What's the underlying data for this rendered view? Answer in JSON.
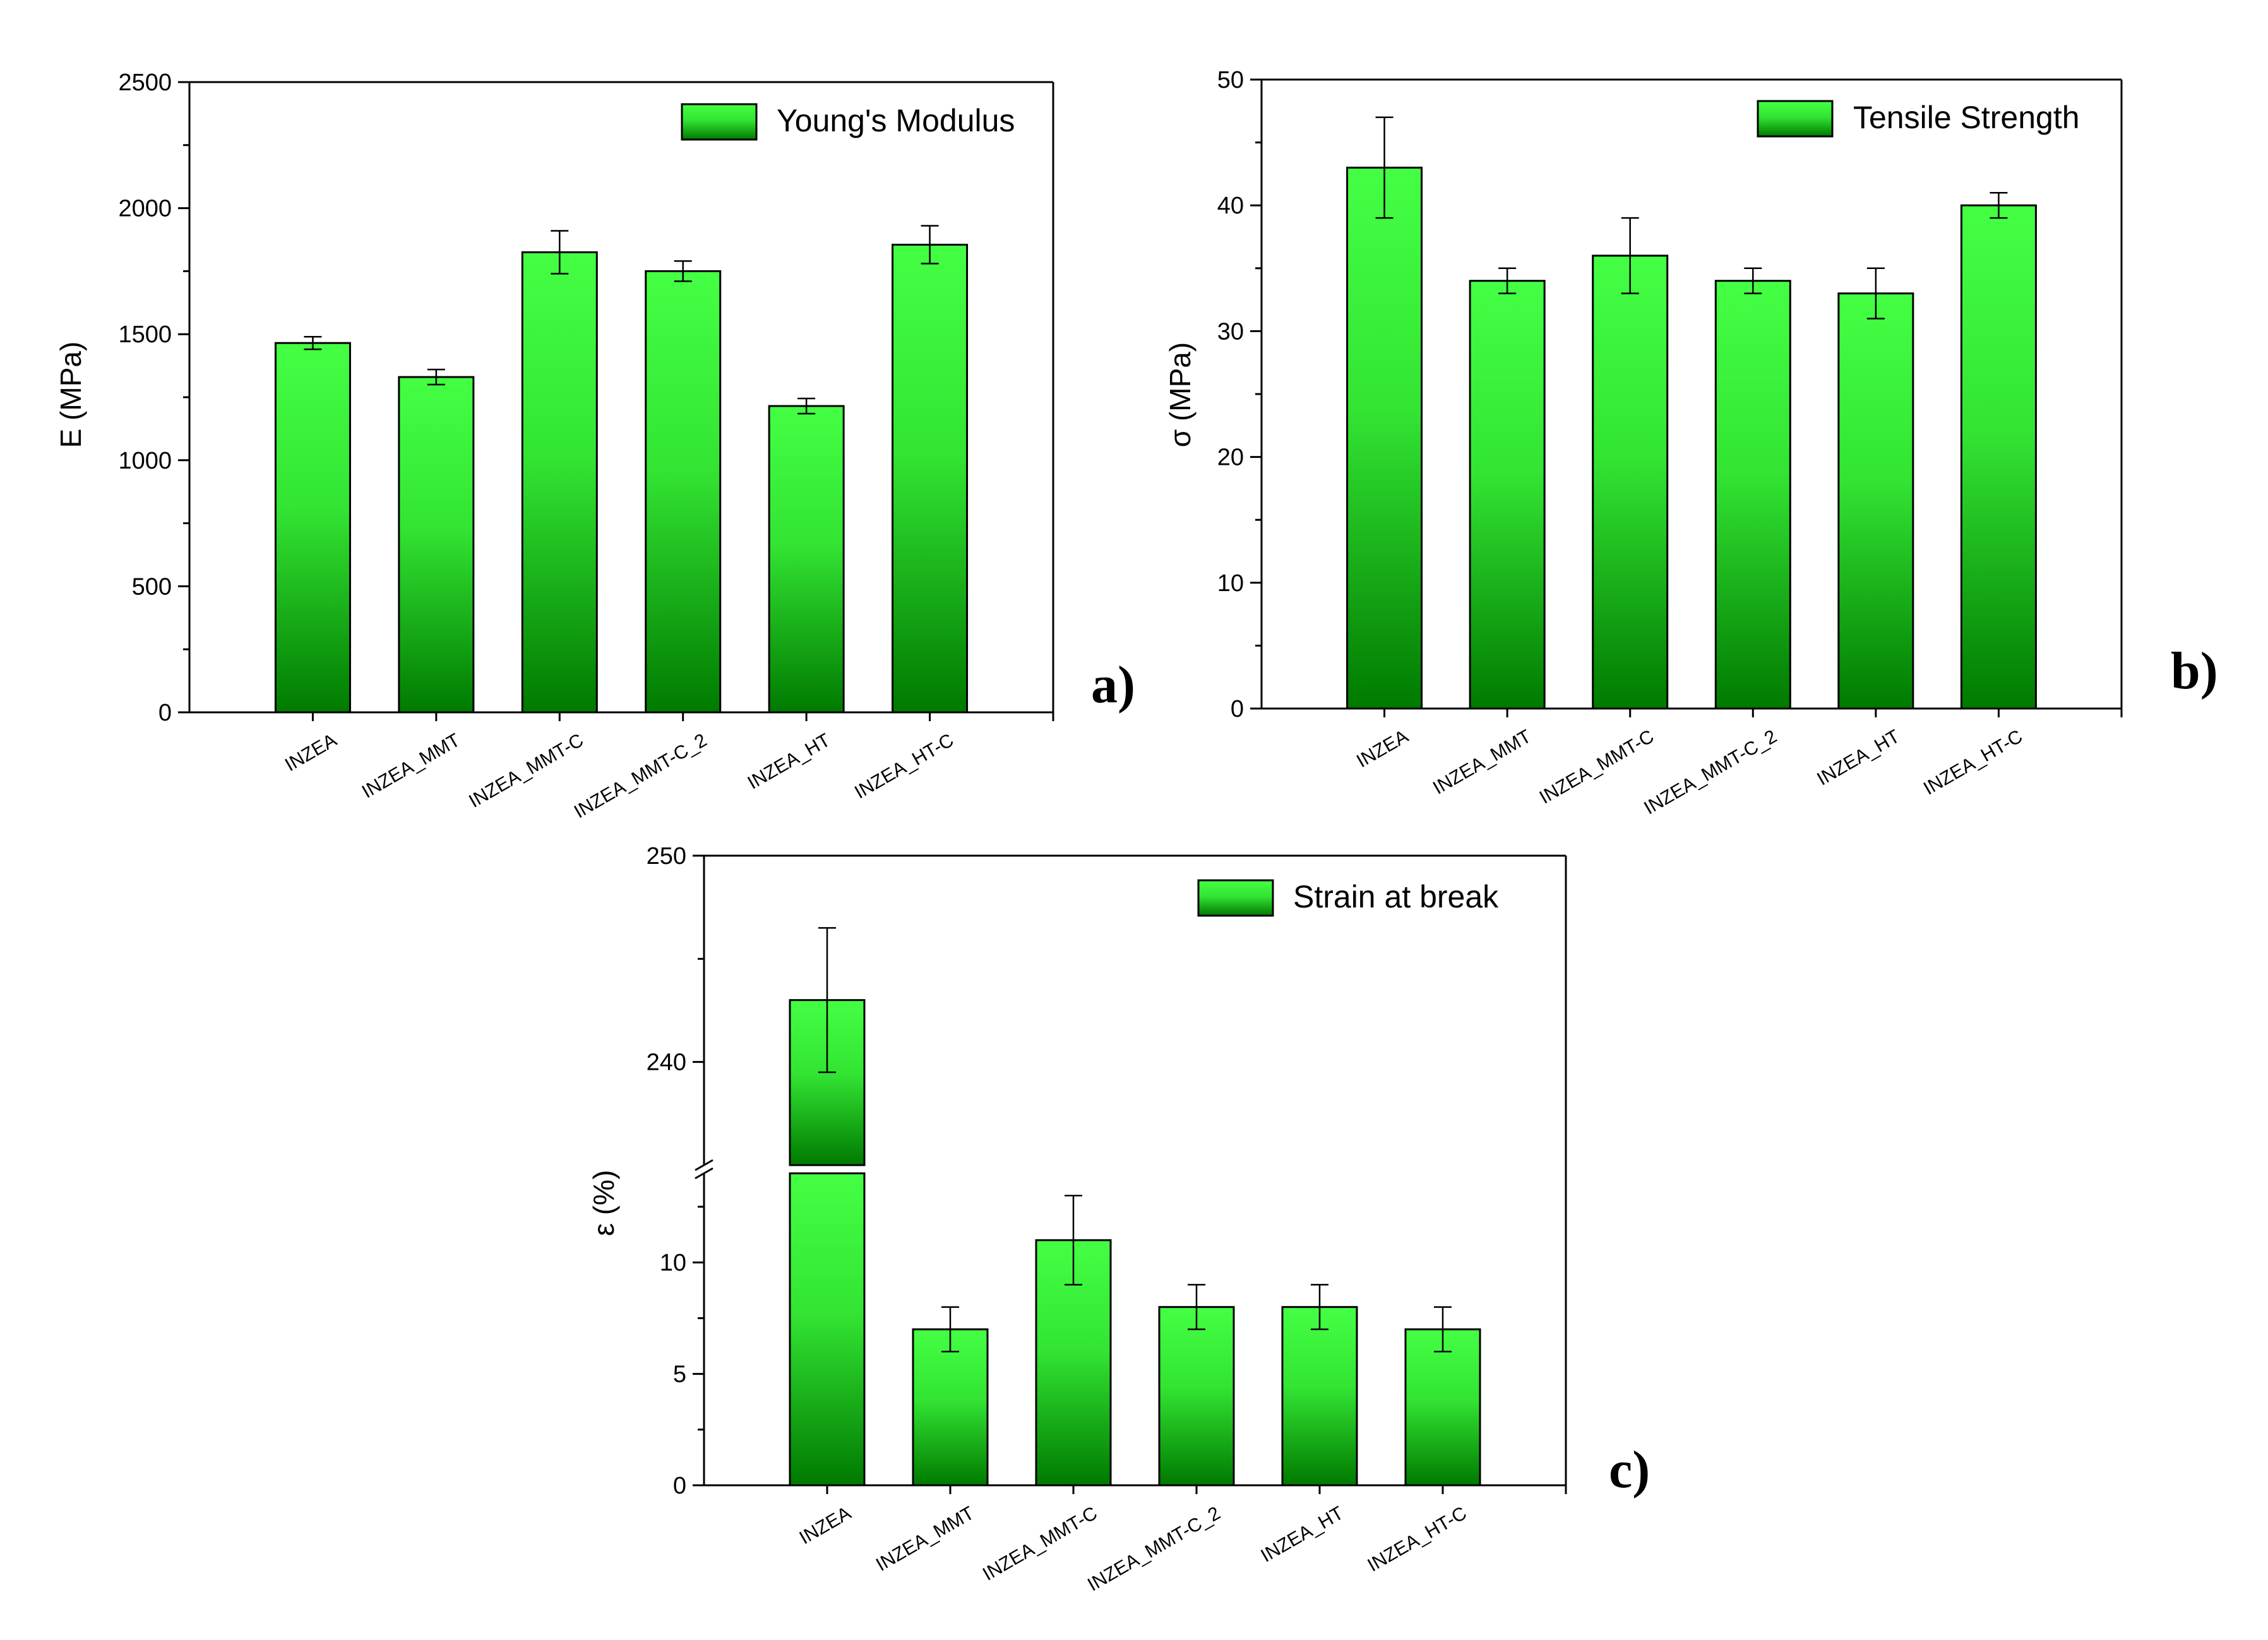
{
  "colors": {
    "bar_top": "#44ff44",
    "bar_mid": "#2ee02e",
    "bar_bottom": "#007a00",
    "axis": "#000000",
    "background": "#ffffff"
  },
  "chart_data": [
    {
      "panel_label": "a)",
      "type": "bar",
      "title": "",
      "xlabel": "",
      "ylabel": "E (MPa)",
      "legend": "Young's Modulus",
      "legend_position": "top-right",
      "categories": [
        "INZEA",
        "INZEA_MMT",
        "INZEA_MMT-C",
        "INZEA_MMT-C_2",
        "INZEA_HT",
        "INZEA_HT-C"
      ],
      "values": [
        1465,
        1330,
        1825,
        1750,
        1215,
        1855
      ],
      "errors": [
        25,
        30,
        85,
        40,
        30,
        75
      ],
      "ylim": [
        0,
        2500
      ],
      "yticks": [
        0,
        500,
        1000,
        1500,
        2000,
        2500
      ],
      "ytick_labels": [
        "0",
        "500",
        "1000",
        "1500",
        "2000",
        "2500"
      ],
      "grid": false
    },
    {
      "panel_label": "b)",
      "type": "bar",
      "title": "",
      "xlabel": "",
      "ylabel": "σ (MPa)",
      "legend": "Tensile Strength",
      "legend_position": "top-right",
      "categories": [
        "INZEA",
        "INZEA_MMT",
        "INZEA_MMT-C",
        "INZEA_MMT-C_2",
        "INZEA_HT",
        "INZEA_HT-C"
      ],
      "values": [
        43,
        34,
        36,
        34,
        33,
        40
      ],
      "errors": [
        4,
        1,
        3,
        1,
        2,
        1
      ],
      "ylim": [
        0,
        50
      ],
      "yticks": [
        0,
        10,
        20,
        30,
        40,
        50
      ],
      "ytick_labels": [
        "0",
        "10",
        "20",
        "30",
        "40",
        "50"
      ],
      "grid": false
    },
    {
      "panel_label": "c)",
      "type": "bar",
      "title": "",
      "xlabel": "",
      "ylabel": "ε (%)",
      "legend": "Strain at break",
      "legend_position": "top-right",
      "categories": [
        "INZEA",
        "INZEA_MMT",
        "INZEA_MMT-C",
        "INZEA_MMT-C_2",
        "INZEA_HT",
        "INZEA_HT-C"
      ],
      "values": [
        243,
        7,
        11,
        8,
        8,
        7
      ],
      "errors": [
        3.5,
        1,
        2,
        1,
        1,
        1
      ],
      "broken_axis": true,
      "lower_range": [
        0,
        14
      ],
      "upper_range": [
        235,
        250
      ],
      "yticks": [
        0,
        5,
        10,
        240,
        250
      ],
      "ytick_labels": [
        "0",
        "5",
        "10",
        "240",
        "250"
      ],
      "grid": false
    }
  ]
}
